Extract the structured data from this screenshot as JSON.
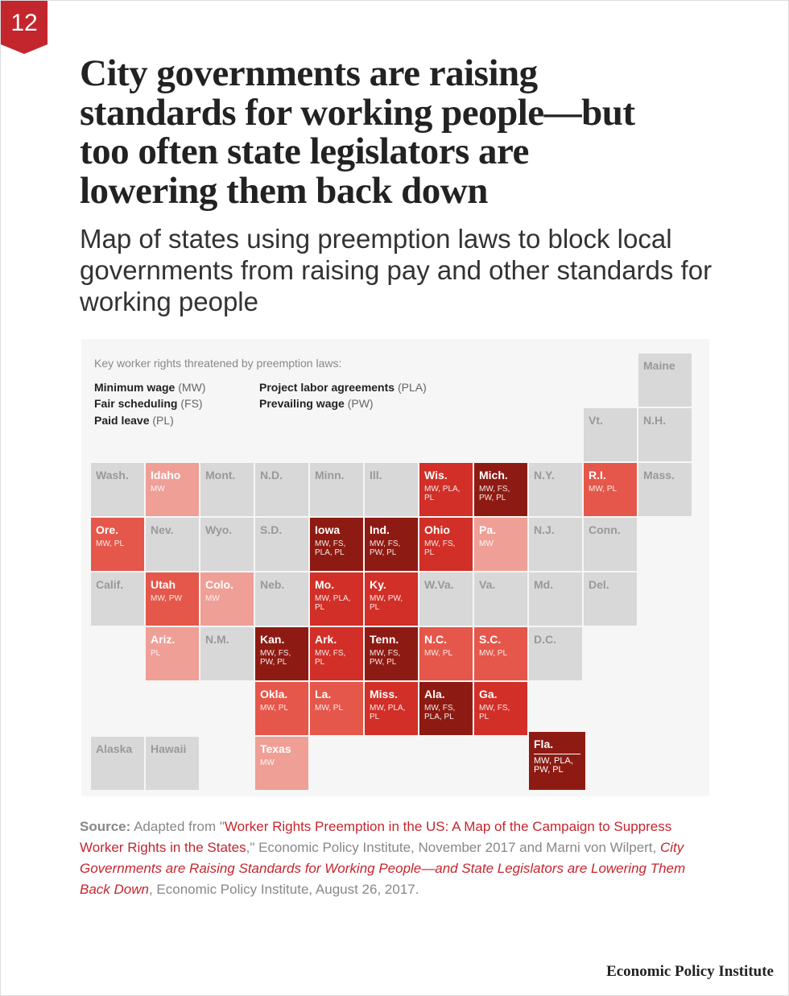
{
  "badge": "12",
  "title_lines": [
    "City governments are raising",
    "standards for working people—but",
    "too often state legislators are",
    "lowering them back down"
  ],
  "subtitle": "Map of states using preemption laws to block local governments from raising pay and other standards for working people",
  "legend": {
    "heading": "Key worker rights threatened by preemption laws:",
    "items": [
      {
        "name": "Minimum wage",
        "abbr": "(MW)"
      },
      {
        "name": "Fair scheduling",
        "abbr": "(FS)"
      },
      {
        "name": "Paid leave",
        "abbr": "(PL)"
      },
      {
        "name": "Project labor agreements",
        "abbr": "(PLA)"
      },
      {
        "name": "Prevailing wage",
        "abbr": "(PW)"
      }
    ]
  },
  "tiles": [
    {
      "name": "Maine",
      "color": "#d8d8d8"
    },
    {
      "name": "Vt.",
      "color": "#d8d8d8"
    },
    {
      "name": "N.H.",
      "color": "#d8d8d8"
    },
    {
      "name": "Wash.",
      "color": "#d8d8d8"
    },
    {
      "name": "Idaho",
      "rights": [
        "MW"
      ],
      "color": "#ef9f96"
    },
    {
      "name": "Mont.",
      "color": "#d8d8d8"
    },
    {
      "name": "N.D.",
      "color": "#d8d8d8"
    },
    {
      "name": "Minn.",
      "color": "#d8d8d8"
    },
    {
      "name": "Ill.",
      "color": "#d8d8d8"
    },
    {
      "name": "Wis.",
      "rights": [
        "MW, PLA,",
        "PL"
      ],
      "color": "#d12f27"
    },
    {
      "name": "Mich.",
      "rights": [
        "MW, FS,",
        "PW, PL"
      ],
      "color": "#8e1b13"
    },
    {
      "name": "N.Y.",
      "color": "#d8d8d8"
    },
    {
      "name": "R.I.",
      "rights": [
        "MW, PL"
      ],
      "color": "#e5574a"
    },
    {
      "name": "Mass.",
      "color": "#d8d8d8"
    },
    {
      "name": "Ore.",
      "rights": [
        "MW, PL"
      ],
      "color": "#e5574a"
    },
    {
      "name": "Nev.",
      "color": "#d8d8d8"
    },
    {
      "name": "Wyo.",
      "color": "#d8d8d8"
    },
    {
      "name": "S.D.",
      "color": "#d8d8d8"
    },
    {
      "name": "Iowa",
      "rights": [
        "MW, FS,",
        "PLA, PL"
      ],
      "color": "#8e1b13"
    },
    {
      "name": "Ind.",
      "rights": [
        "MW, FS,",
        "PW, PL"
      ],
      "color": "#8e1b13"
    },
    {
      "name": "Ohio",
      "rights": [
        "MW, FS,",
        "PL"
      ],
      "color": "#d12f27"
    },
    {
      "name": "Pa.",
      "rights": [
        "MW"
      ],
      "color": "#ef9f96"
    },
    {
      "name": "N.J.",
      "color": "#d8d8d8"
    },
    {
      "name": "Conn.",
      "color": "#d8d8d8"
    },
    {
      "name": "Calif.",
      "color": "#d8d8d8"
    },
    {
      "name": "Utah",
      "rights": [
        "MW, PW"
      ],
      "color": "#e5574a"
    },
    {
      "name": "Colo.",
      "rights": [
        "MW"
      ],
      "color": "#ef9f96"
    },
    {
      "name": "Neb.",
      "color": "#d8d8d8"
    },
    {
      "name": "Mo.",
      "rights": [
        "MW, PLA,",
        "PL"
      ],
      "color": "#d12f27"
    },
    {
      "name": "Ky.",
      "rights": [
        "MW, PW,",
        "PL"
      ],
      "color": "#d12f27"
    },
    {
      "name": "W.Va.",
      "color": "#d8d8d8"
    },
    {
      "name": "Va.",
      "color": "#d8d8d8"
    },
    {
      "name": "Md.",
      "color": "#d8d8d8"
    },
    {
      "name": "Del.",
      "color": "#d8d8d8"
    },
    {
      "name": "Ariz.",
      "rights": [
        "PL"
      ],
      "color": "#ef9f96"
    },
    {
      "name": "N.M.",
      "color": "#d8d8d8"
    },
    {
      "name": "Kan.",
      "rights": [
        "MW, FS,",
        "PW, PL"
      ],
      "color": "#8e1b13"
    },
    {
      "name": "Ark.",
      "rights": [
        "MW, FS,",
        "PL"
      ],
      "color": "#d12f27"
    },
    {
      "name": "Tenn.",
      "rights": [
        "MW, FS,",
        "PW, PL"
      ],
      "color": "#8e1b13"
    },
    {
      "name": "N.C.",
      "rights": [
        "MW, PL"
      ],
      "color": "#e5574a"
    },
    {
      "name": "S.C.",
      "rights": [
        "MW, PL"
      ],
      "color": "#e5574a"
    },
    {
      "name": "D.C.",
      "color": "#d8d8d8"
    },
    {
      "name": "Okla.",
      "rights": [
        "MW, PL"
      ],
      "color": "#e5574a"
    },
    {
      "name": "La.",
      "rights": [
        "MW, PL"
      ],
      "color": "#e5574a"
    },
    {
      "name": "Miss.",
      "rights": [
        "MW, PLA,",
        "PL"
      ],
      "color": "#d12f27"
    },
    {
      "name": "Ala.",
      "rights": [
        "MW, FS,",
        "PLA, PL"
      ],
      "color": "#8e1b13"
    },
    {
      "name": "Ga.",
      "rights": [
        "MW, FS,",
        "PL"
      ],
      "color": "#d12f27"
    },
    {
      "name": "Alaska",
      "color": "#d8d8d8"
    },
    {
      "name": "Hawaii",
      "color": "#d8d8d8"
    },
    {
      "name": "Texas",
      "rights": [
        "MW"
      ],
      "color": "#ef9f96"
    },
    {
      "name": "Fla.",
      "rights": [
        "MW, PLA,",
        "PW, PL"
      ],
      "color": "#8e1b13"
    }
  ],
  "source": {
    "label": "Source:",
    "parts": [
      "Adapted from \"",
      "Worker Rights Preemption in the US: A Map of the Campaign to Suppress Worker Rights in the States",
      ",\" Economic Policy Institute, November 2017 and Marni von Wilpert, ",
      "City Governments are Raising Standards for Working People—and State Legislators are Lowering Them Back Down",
      ", Economic Policy Institute, August 26, 2017."
    ]
  },
  "footer": "Economic Policy Institute"
}
